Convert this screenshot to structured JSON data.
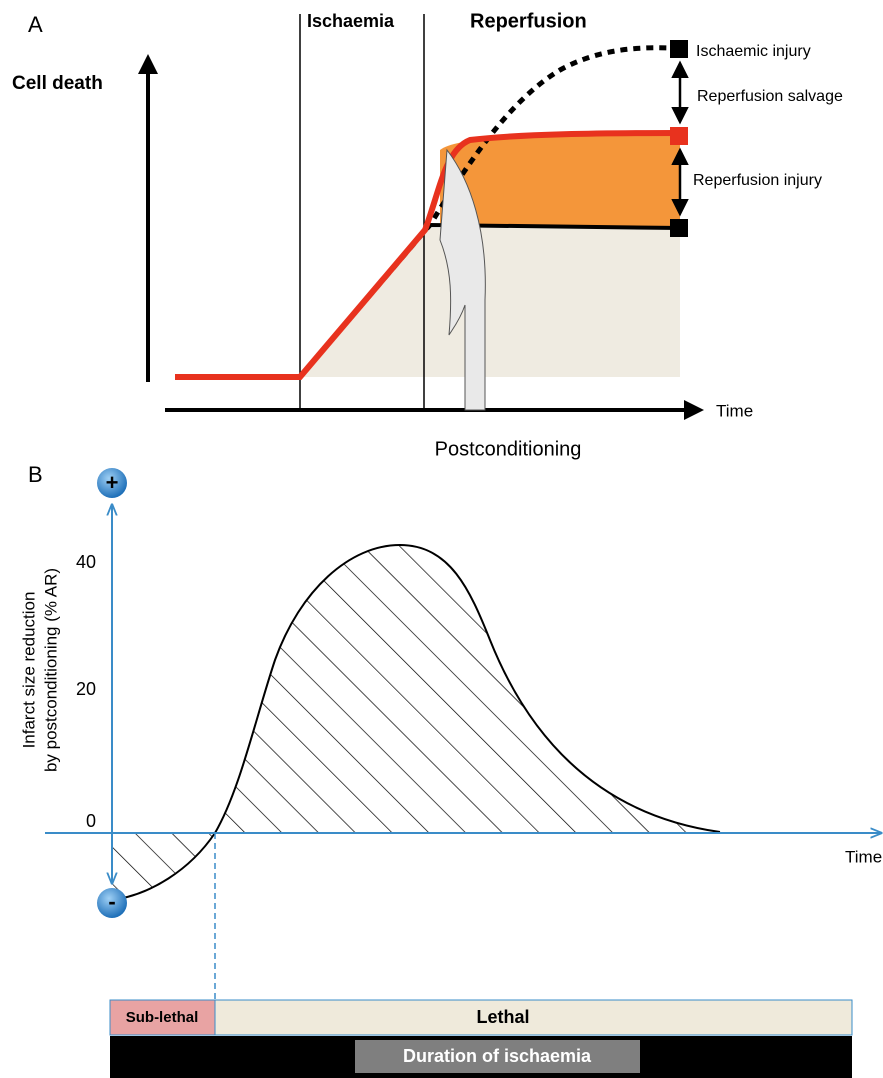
{
  "panel_a": {
    "label": "A",
    "y_axis": "Cell death",
    "x_axis": "Time",
    "phases": [
      "Ischaemia",
      "Reperfusion"
    ],
    "annotations": [
      "Ischaemic injury",
      "Reperfusion salvage",
      "Reperfusion injury"
    ],
    "intervention": "Postconditioning"
  },
  "panel_b": {
    "label": "B",
    "y_axis_label": [
      "Infarct size reduction",
      "by postconditioning (% AR)"
    ],
    "yticks": [
      "40",
      "20",
      "0"
    ],
    "x_axis": "Time",
    "signs": [
      "+",
      "-"
    ],
    "bands": [
      "Sub-lethal",
      "Lethal"
    ],
    "duration": "Duration of ischaemia"
  }
}
